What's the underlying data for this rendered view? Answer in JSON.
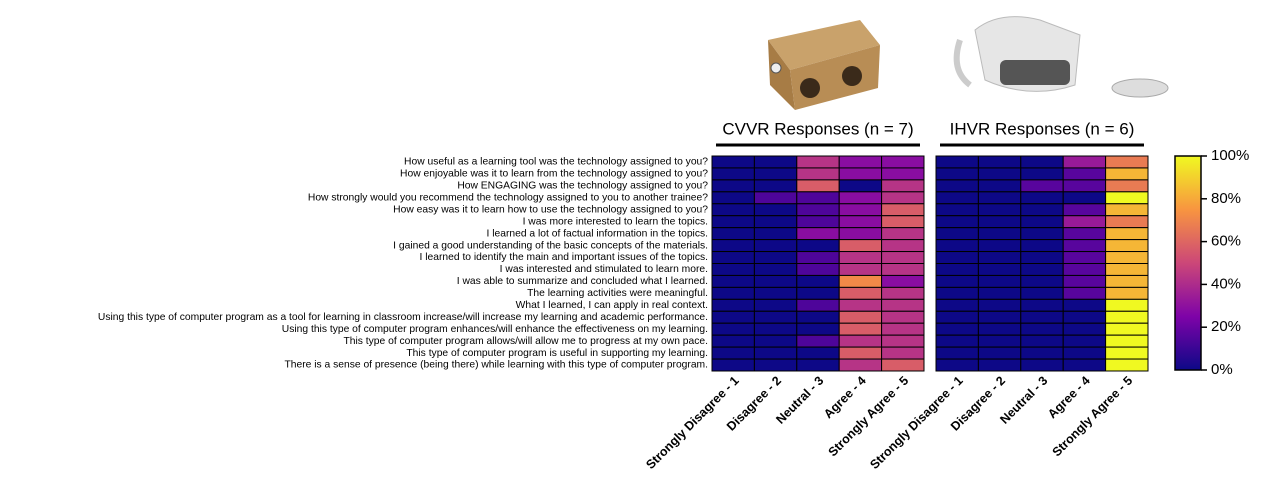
{
  "chart_data": {
    "type": "heatmap",
    "y_categories": [
      "How useful as a learning tool was the technology assigned to you?",
      "How enjoyable was it to learn from the technology assigned to you?",
      "How ENGAGING was the technology assigned to you?",
      "How strongly would you recommend the technology assigned to you to another trainee?",
      "How easy was it to learn how to use the technology assigned to you?",
      "I was more interested to learn the topics.",
      "I learned a lot of factual information in the topics.",
      "I gained a good understanding of the basic concepts of the materials.",
      "I learned to identify the main and important issues of the topics.",
      "I was interested and stimulated to learn more.",
      "I was able to summarize and concluded what I learned.",
      "The learning activities were meaningful.",
      "What I learned, I can apply in real context.",
      "Using this type of computer program as a tool for learning in classroom increase/will increase my learning and academic performance.",
      "Using this type of computer program enhances/will enhance the effectiveness on my learning.",
      "This type of computer program allows/will allow me to progress at my own pace.",
      "This type of computer program is useful in supporting my learning.",
      "There is a sense of presence (being there) while learning with this type of computer program."
    ],
    "x_categories": [
      "Strongly Disagree - 1",
      "Disagree - 2",
      "Neutral - 3",
      "Agree - 4",
      "Strongly Agree - 5"
    ],
    "panels": [
      {
        "title": "CVVR Responses  (n = 7)",
        "values": [
          [
            0,
            0,
            42.9,
            28.6,
            28.6
          ],
          [
            0,
            0,
            42.9,
            28.6,
            28.6
          ],
          [
            0,
            0,
            57.1,
            0,
            42.9
          ],
          [
            0,
            14.3,
            14.3,
            28.6,
            42.9
          ],
          [
            0,
            0,
            14.3,
            28.6,
            57.1
          ],
          [
            0,
            0,
            14.3,
            28.6,
            57.1
          ],
          [
            0,
            0,
            28.6,
            28.6,
            42.9
          ],
          [
            0,
            0,
            0,
            57.1,
            42.9
          ],
          [
            0,
            0,
            14.3,
            42.9,
            42.9
          ],
          [
            0,
            0,
            14.3,
            42.9,
            42.9
          ],
          [
            0,
            0,
            0,
            71.4,
            28.6
          ],
          [
            0,
            0,
            0,
            57.1,
            42.9
          ],
          [
            0,
            0,
            14.3,
            42.9,
            42.9
          ],
          [
            0,
            0,
            0,
            57.1,
            42.9
          ],
          [
            0,
            0,
            0,
            57.1,
            42.9
          ],
          [
            0,
            0,
            14.3,
            42.9,
            42.9
          ],
          [
            0,
            0,
            0,
            57.1,
            42.9
          ],
          [
            0,
            0,
            0,
            42.9,
            57.1
          ]
        ]
      },
      {
        "title": "IHVR Responses  (n = 6)",
        "values": [
          [
            0,
            0,
            0,
            33.3,
            66.7
          ],
          [
            0,
            0,
            0,
            16.7,
            83.3
          ],
          [
            0,
            0,
            16.7,
            16.7,
            66.7
          ],
          [
            0,
            0,
            0,
            0,
            100
          ],
          [
            0,
            0,
            0,
            16.7,
            83.3
          ],
          [
            0,
            0,
            0,
            33.3,
            66.7
          ],
          [
            0,
            0,
            0,
            16.7,
            83.3
          ],
          [
            0,
            0,
            0,
            16.7,
            83.3
          ],
          [
            0,
            0,
            0,
            16.7,
            83.3
          ],
          [
            0,
            0,
            0,
            16.7,
            83.3
          ],
          [
            0,
            0,
            0,
            16.7,
            83.3
          ],
          [
            0,
            0,
            0,
            16.7,
            83.3
          ],
          [
            0,
            0,
            0,
            0,
            100
          ],
          [
            0,
            0,
            0,
            0,
            100
          ],
          [
            0,
            0,
            0,
            0,
            100
          ],
          [
            0,
            0,
            0,
            0,
            100
          ],
          [
            0,
            0,
            0,
            0,
            100
          ],
          [
            0,
            0,
            0,
            0,
            100
          ]
        ]
      }
    ],
    "zlim": [
      0,
      100
    ],
    "zticks": [
      {
        "value": 0,
        "label": "0%"
      },
      {
        "value": 20,
        "label": "20%"
      },
      {
        "value": 40,
        "label": "40%"
      },
      {
        "value": 60,
        "label": "60%"
      },
      {
        "value": 80,
        "label": "80%"
      },
      {
        "value": 100,
        "label": "100%"
      }
    ],
    "colormap": "plasma"
  }
}
